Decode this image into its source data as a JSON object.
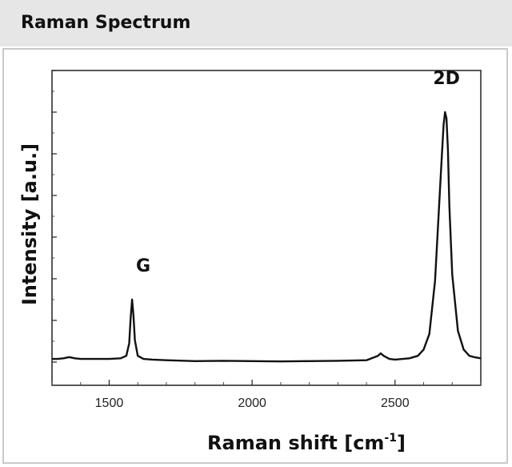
{
  "header": {
    "title": "Raman Spectrum"
  },
  "chart_data": {
    "type": "line",
    "title": "",
    "xlabel": "Raman shift [cm",
    "xlabel_sup": "-1",
    "xlabel_tail": "]",
    "ylabel": "Intensity [a.u.]",
    "xlim": [
      1300,
      2800
    ],
    "ylim": [
      0,
      1.0
    ],
    "xticks": [
      1500,
      2000,
      2500
    ],
    "xtick_labels": [
      "1500",
      "2000",
      "2500"
    ],
    "yticks_shown_labels": false,
    "grid": false,
    "line_color": "#111111",
    "annotations": [
      {
        "text": "G",
        "x": 1580,
        "y": 0.29
      },
      {
        "text": "2D",
        "x": 2680,
        "y": 0.89
      }
    ],
    "series": [
      {
        "x": [
          1300,
          1320,
          1340,
          1360,
          1380,
          1400,
          1450,
          1500,
          1540,
          1560,
          1570,
          1575,
          1580,
          1585,
          1590,
          1600,
          1620,
          1650,
          1700,
          1800,
          1900,
          2000,
          2100,
          2200,
          2300,
          2400,
          2440,
          2450,
          2460,
          2480,
          2500,
          2550,
          2580,
          2600,
          2620,
          2640,
          2660,
          2670,
          2675,
          2680,
          2685,
          2690,
          2700,
          2720,
          2740,
          2760,
          2780,
          2800
        ],
        "values": [
          0.01,
          0.01,
          0.012,
          0.016,
          0.012,
          0.01,
          0.01,
          0.01,
          0.012,
          0.02,
          0.06,
          0.14,
          0.2,
          0.15,
          0.07,
          0.02,
          0.01,
          0.008,
          0.006,
          0.003,
          0.004,
          0.003,
          0.002,
          0.003,
          0.004,
          0.006,
          0.02,
          0.028,
          0.02,
          0.01,
          0.008,
          0.012,
          0.02,
          0.04,
          0.09,
          0.26,
          0.6,
          0.76,
          0.8,
          0.78,
          0.68,
          0.5,
          0.28,
          0.1,
          0.04,
          0.02,
          0.015,
          0.012
        ]
      }
    ]
  }
}
